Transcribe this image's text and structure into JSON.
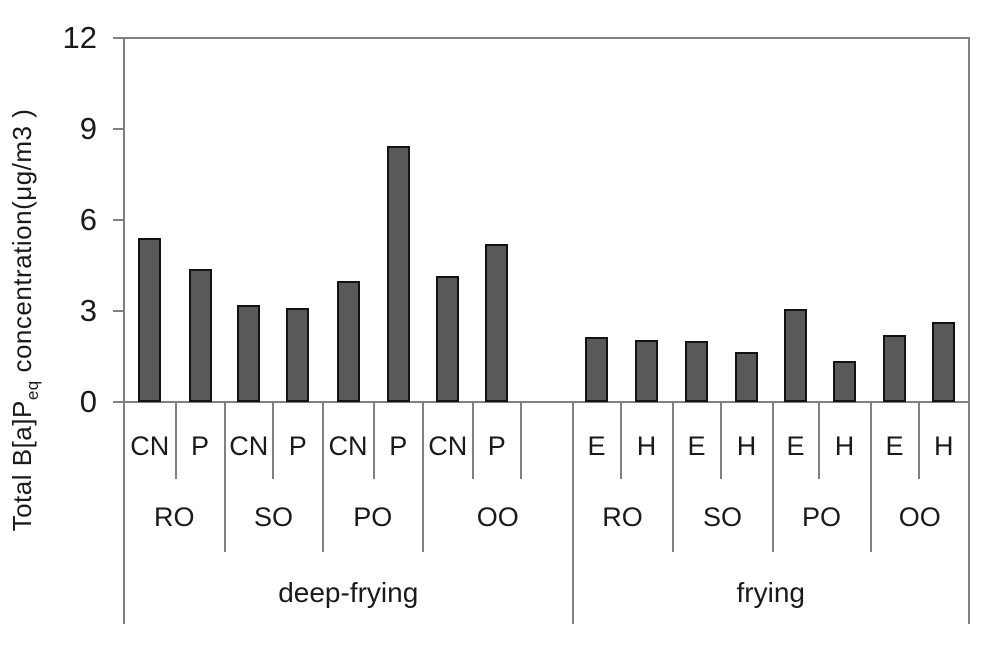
{
  "chart_data": {
    "type": "bar",
    "title": "",
    "ylabel_parts": {
      "pre": "Total B[a]P",
      "sub": "eq",
      "post": " concentration(μg/m3 )"
    },
    "ylabel_full": "Total B[a]Peq concentration(μg/m3 )",
    "xlabel": "",
    "ylim": [
      0,
      12
    ],
    "yticks": [
      0,
      3,
      6,
      9,
      12
    ],
    "grid": false,
    "legend": false,
    "bar_color": "#595959",
    "bar_border_color": "#121212",
    "axis_color": "#808080",
    "text_color": "#1a1a1a",
    "groups": [
      {
        "method": "deep-frying",
        "oils": [
          {
            "oil": "RO",
            "bars": [
              {
                "label": "CN",
                "value": 5.4
              },
              {
                "label": "P",
                "value": 4.4
              }
            ]
          },
          {
            "oil": "SO",
            "bars": [
              {
                "label": "CN",
                "value": 3.2
              },
              {
                "label": "P",
                "value": 3.1
              }
            ]
          },
          {
            "oil": "PO",
            "bars": [
              {
                "label": "CN",
                "value": 4.0
              },
              {
                "label": "P",
                "value": 8.45
              }
            ]
          },
          {
            "oil": "OO",
            "bars": [
              {
                "label": "CN",
                "value": 4.15
              },
              {
                "label": "P",
                "value": 5.2
              }
            ]
          }
        ]
      },
      {
        "method": "frying",
        "oils": [
          {
            "oil": "RO",
            "bars": [
              {
                "label": "E",
                "value": 2.15
              },
              {
                "label": "H",
                "value": 2.05
              }
            ]
          },
          {
            "oil": "SO",
            "bars": [
              {
                "label": "E",
                "value": 2.0
              },
              {
                "label": "H",
                "value": 1.65
              }
            ]
          },
          {
            "oil": "PO",
            "bars": [
              {
                "label": "E",
                "value": 3.05
              },
              {
                "label": "H",
                "value": 1.35
              }
            ]
          },
          {
            "oil": "OO",
            "bars": [
              {
                "label": "E",
                "value": 2.2
              },
              {
                "label": "H",
                "value": 2.65
              }
            ]
          }
        ]
      }
    ]
  }
}
